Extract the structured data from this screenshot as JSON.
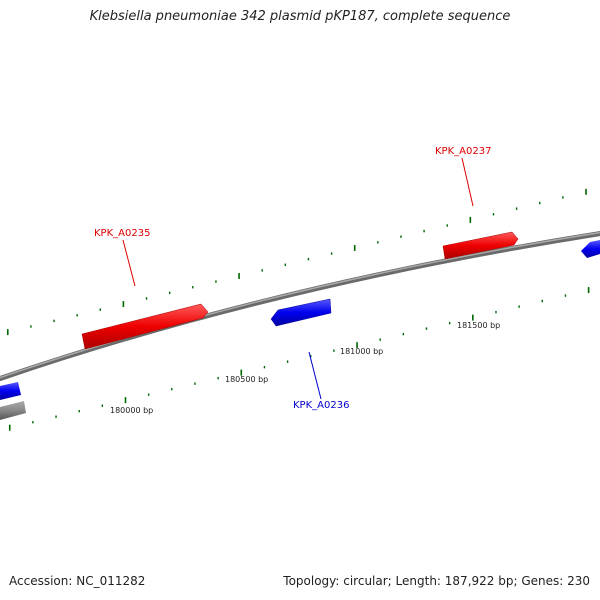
{
  "title": "Klebsiella pneumoniae 342 plasmid pKP187, complete sequence",
  "footer": {
    "accession": "Accession: NC_011282",
    "summary": "Topology: circular; Length: 187,922 bp; Genes: 230"
  },
  "colors": {
    "forward_gene": "#ee0000",
    "reverse_gene": "#0000ee",
    "tick": "#006600",
    "backbone": "#888888"
  },
  "genes": [
    {
      "name": "KPK_A0235",
      "strand": "forward",
      "color": "#dd0000"
    },
    {
      "name": "KPK_A0237",
      "strand": "forward",
      "color": "#dd0000"
    },
    {
      "name": "KPK_A0236",
      "strand": "reverse",
      "color": "#0000cc"
    }
  ],
  "scale_labels": [
    "180000 bp",
    "180500 bp",
    "181000 bp",
    "181500 bp"
  ]
}
